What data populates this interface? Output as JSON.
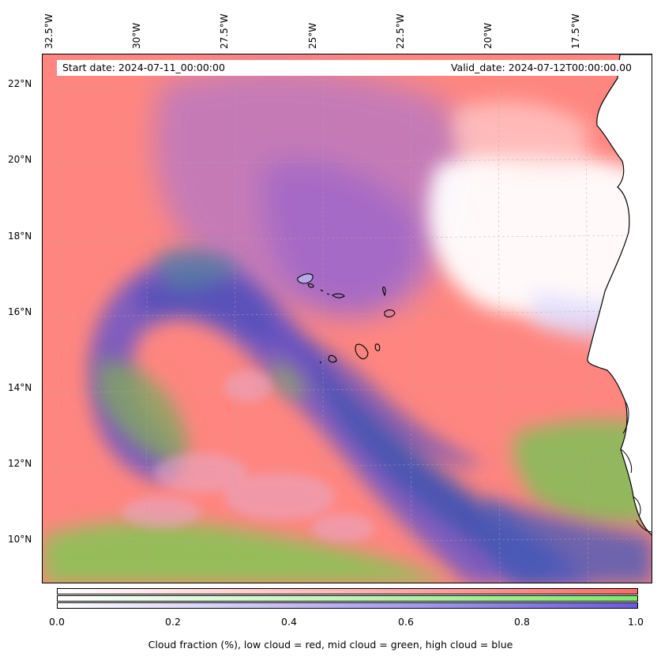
{
  "map": {
    "start_date": "Start date: 2024-07-11_00:00:00",
    "valid_date": "Valid_date: 2024-07-12T00:00:00.00",
    "lon_labels": [
      "32.5°W",
      "30°W",
      "27.5°W",
      "25°W",
      "22.5°W",
      "20°W",
      "17.5°W"
    ],
    "lat_labels": [
      "22°N",
      "20°N",
      "18°N",
      "16°N",
      "14°N",
      "12°N",
      "10°N"
    ],
    "layers": [
      "low cloud",
      "mid cloud",
      "high cloud"
    ],
    "colors": {
      "low": "#ff7f7f",
      "mid": "#80e070",
      "high": "#5a5ad8",
      "land": "#ffffff",
      "coast": "#000000"
    }
  },
  "colorbar": {
    "ticks": [
      "0.0",
      "0.2",
      "0.4",
      "0.6",
      "0.8",
      "1.0"
    ],
    "label": "Cloud fraction (%), low cloud = red, mid cloud = green, high cloud = blue"
  }
}
